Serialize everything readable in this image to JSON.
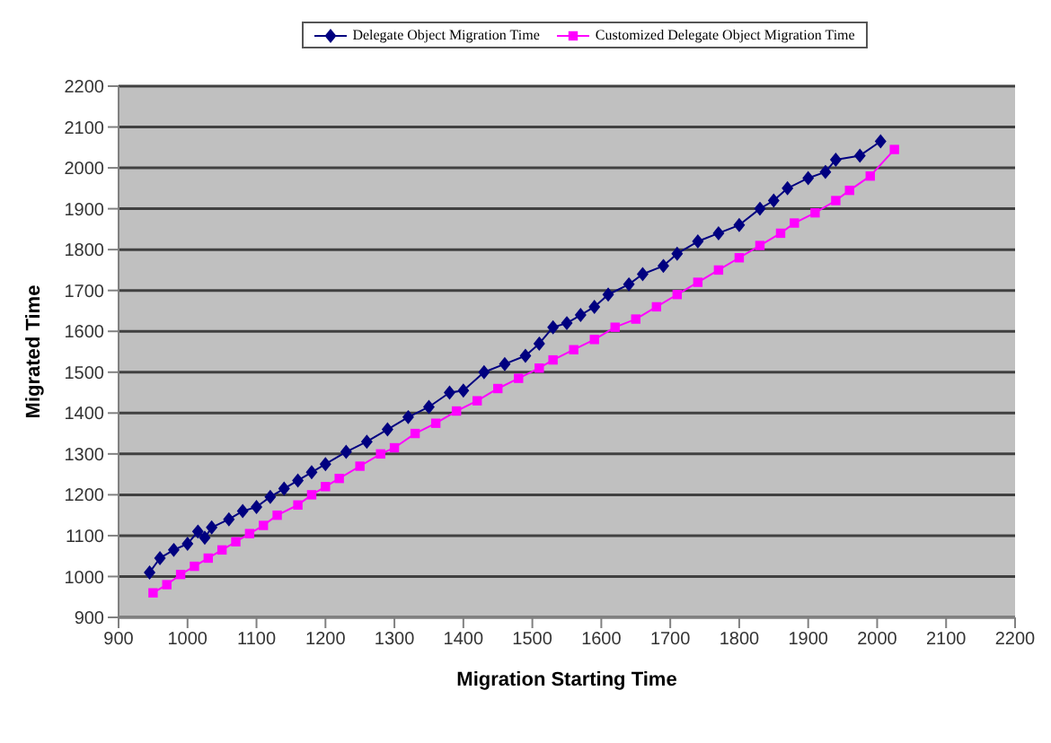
{
  "chart_data": {
    "type": "line",
    "xlabel": "Migration Starting Time",
    "ylabel": "Migrated Time",
    "xlim": [
      900,
      2200
    ],
    "xticks": [
      900,
      1000,
      1100,
      1200,
      1300,
      1400,
      1500,
      1600,
      1700,
      1800,
      1900,
      2000,
      2100,
      2200
    ],
    "ylim": [
      900,
      2200
    ],
    "yticks": [
      900,
      1000,
      1100,
      1200,
      1300,
      1400,
      1500,
      1600,
      1700,
      1800,
      1900,
      2000,
      2100,
      2200
    ],
    "grid": "y",
    "legend": "top",
    "line_style": "solid",
    "series": [
      {
        "name": "Delegate Object Migration Time",
        "color": "#000080",
        "marker": "diamond",
        "x": [
          945,
          960,
          980,
          1000,
          1015,
          1025,
          1035,
          1060,
          1080,
          1100,
          1120,
          1140,
          1160,
          1180,
          1200,
          1230,
          1260,
          1290,
          1320,
          1350,
          1380,
          1400,
          1430,
          1460,
          1490,
          1510,
          1530,
          1550,
          1570,
          1590,
          1610,
          1640,
          1660,
          1690,
          1710,
          1740,
          1770,
          1800,
          1830,
          1850,
          1870,
          1900,
          1925,
          1940,
          1975,
          2005
        ],
        "values": [
          1010,
          1045,
          1065,
          1080,
          1110,
          1095,
          1120,
          1140,
          1160,
          1170,
          1195,
          1215,
          1235,
          1255,
          1275,
          1305,
          1330,
          1360,
          1390,
          1415,
          1450,
          1455,
          1500,
          1520,
          1540,
          1570,
          1610,
          1620,
          1640,
          1660,
          1690,
          1715,
          1740,
          1760,
          1790,
          1820,
          1840,
          1860,
          1900,
          1920,
          1950,
          1975,
          1990,
          2020,
          2030,
          2065
        ]
      },
      {
        "name": "Customized Delegate Object Migration Time",
        "color": "#ff00ff",
        "marker": "square",
        "x": [
          950,
          970,
          990,
          1010,
          1030,
          1050,
          1070,
          1090,
          1110,
          1130,
          1160,
          1180,
          1200,
          1220,
          1250,
          1280,
          1300,
          1330,
          1360,
          1390,
          1420,
          1450,
          1480,
          1510,
          1530,
          1560,
          1590,
          1620,
          1650,
          1680,
          1710,
          1740,
          1770,
          1800,
          1830,
          1860,
          1880,
          1910,
          1940,
          1960,
          1990,
          2025
        ],
        "values": [
          960,
          980,
          1005,
          1025,
          1045,
          1065,
          1085,
          1105,
          1125,
          1150,
          1175,
          1200,
          1220,
          1240,
          1270,
          1300,
          1315,
          1350,
          1375,
          1405,
          1430,
          1460,
          1485,
          1510,
          1530,
          1555,
          1580,
          1610,
          1630,
          1660,
          1690,
          1720,
          1750,
          1780,
          1810,
          1840,
          1865,
          1890,
          1920,
          1945,
          1980,
          2045
        ]
      }
    ]
  }
}
